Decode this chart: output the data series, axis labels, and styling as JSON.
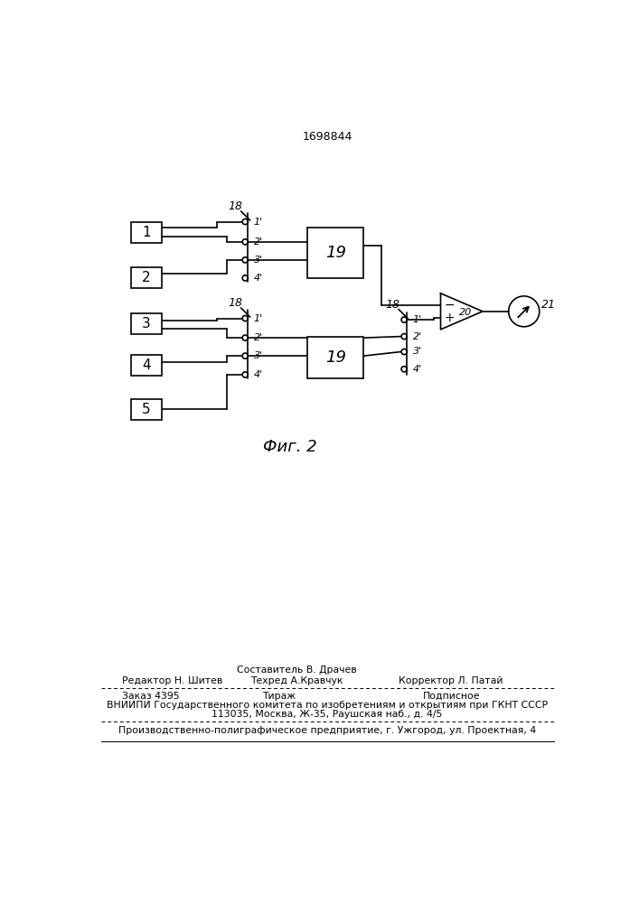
{
  "patent_number": "1698844",
  "fig_label": "Фиг. 2",
  "background_color": "#ffffff",
  "contact_labels": [
    "1'",
    "2'",
    "3'",
    "4'"
  ],
  "footer": {
    "line1_center": "Составитель В. Драчев",
    "line2_left": "Редактор Н. Шитев",
    "line2_center": "Техред А.Кравчук",
    "line2_right": "Корректор Л. Патай",
    "line3_left": "Заказ 4395",
    "line3_center": "Тираж",
    "line3_right": "Подписное",
    "line4": "ВНИИПИ Государственного комитета по изобретениям и открытиям при ГКНТ СССР",
    "line5": "113035, Москва, Ж-35, Раушская наб., д. 4/5",
    "line6": "Производственно-полиграфическое предприятие, г. Ужгород, ул. Проектная, 4"
  }
}
